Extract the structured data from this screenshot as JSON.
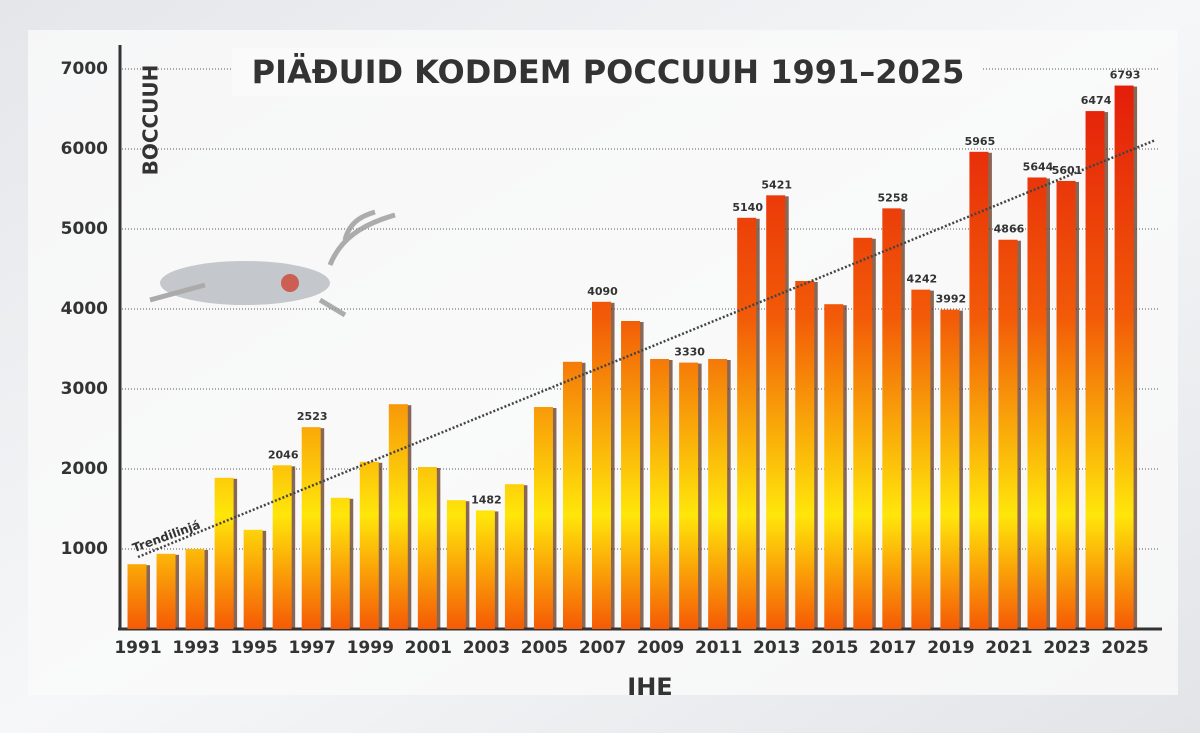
{
  "chart_data": {
    "type": "bar",
    "title": "PIÄÐUID KODDEM POCCUUH 1991–2025",
    "y_label": "BOCCUUH",
    "x_label": "IHE",
    "categories": [
      "1991",
      null,
      "1993",
      null,
      "1995",
      null,
      "1997",
      null,
      "1999",
      null,
      "2001",
      null,
      "2003",
      null,
      "2005",
      null,
      "2007",
      null,
      "2009",
      null,
      "2011",
      null,
      "2013",
      null,
      "2015",
      null,
      "2017",
      null,
      "2019",
      null,
      "2021",
      null,
      "2023",
      null,
      "2025"
    ],
    "values": [
      810,
      940,
      1000,
      1890,
      1240,
      2046,
      2523,
      1640,
      2090,
      2810,
      2025,
      1610,
      1482,
      1810,
      2775,
      3340,
      4090,
      3850,
      3375,
      3330,
      3375,
      5140,
      5421,
      4350,
      4060,
      4890,
      5258,
      4242,
      3992,
      5965,
      4866,
      5644,
      5601,
      6474,
      6793
    ],
    "value_labels": [
      null,
      null,
      null,
      null,
      null,
      "2046",
      "2523",
      null,
      null,
      null,
      null,
      null,
      "1482",
      null,
      null,
      null,
      "4090",
      null,
      null,
      "3330",
      null,
      "5140",
      "5421",
      null,
      null,
      null,
      "5258",
      "4242",
      "3992",
      "5965",
      "4866",
      "5644",
      "5601",
      "6474",
      "6793"
    ],
    "color": "#e2170b",
    "ylim": [
      0,
      7300
    ],
    "yticks": [
      1000,
      2000,
      3000,
      4000,
      5000,
      6000,
      7000
    ],
    "grid": true,
    "trendline": {
      "label": "Trendilinjá",
      "values": [
        900,
        6110
      ]
    }
  }
}
